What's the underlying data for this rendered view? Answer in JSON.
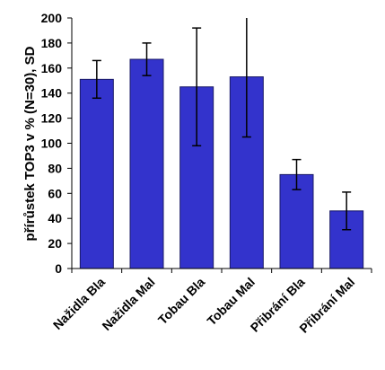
{
  "chart_data": {
    "type": "bar",
    "title": "",
    "xlabel": "",
    "ylabel": "přírůstek TOP3  v % (N=30), SD",
    "ylim": [
      0,
      200
    ],
    "yticks": [
      0,
      20,
      40,
      60,
      80,
      100,
      120,
      140,
      160,
      180,
      200
    ],
    "grid": false,
    "categories": [
      "Nažidla Bla",
      "Nažidla Mal",
      "Tobau Bla",
      "Tobau Mal",
      "Přibrání Bla",
      "Přibrání Mal"
    ],
    "series": [
      {
        "values": [
          151,
          167,
          145,
          153,
          75,
          46
        ],
        "error": [
          15,
          13,
          47,
          48,
          12,
          15
        ]
      }
    ],
    "colors": {
      "bar": "#3333cc",
      "bar_stroke": "#1a1a66",
      "axis": "#000000",
      "error": "#000000"
    }
  }
}
